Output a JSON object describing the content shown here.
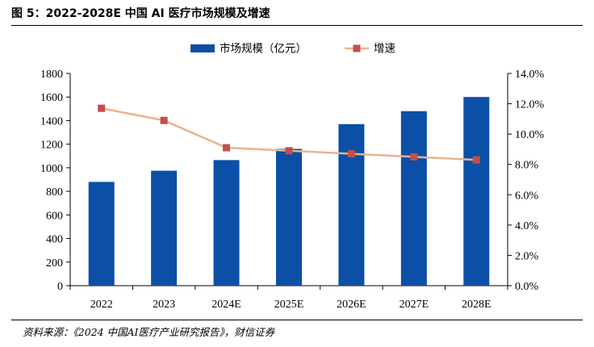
{
  "figure": {
    "title": "图 5：2022-2028E 中国 AI 医疗市场规模及增速",
    "source": "资料来源：《2024 中国AI医疗产业研究报告》，财信证券"
  },
  "chart_data": {
    "type": "bar",
    "categories": [
      "2022",
      "2023",
      "2024E",
      "2025E",
      "2026E",
      "2027E",
      "2028E"
    ],
    "series": [
      {
        "name": "市场规模（亿元）",
        "type": "bar",
        "axis": "left",
        "values": [
          880,
          975,
          1065,
          1160,
          1370,
          1480,
          1600
        ],
        "color": "#0B4FA6"
      },
      {
        "name": "增速",
        "type": "line",
        "axis": "right",
        "values": [
          11.7,
          10.9,
          9.1,
          8.9,
          8.7,
          8.5,
          8.3
        ],
        "color": "#E8B38F",
        "marker_color": "#C0504D"
      }
    ],
    "y_left": {
      "min": 0,
      "max": 1800,
      "step": 200,
      "ticks": [
        "0",
        "200",
        "400",
        "600",
        "800",
        "1000",
        "1200",
        "1400",
        "1600",
        "1800"
      ]
    },
    "y_right": {
      "min": 0,
      "max": 14,
      "step": 2,
      "ticks": [
        "0.0%",
        "2.0%",
        "4.0%",
        "6.0%",
        "8.0%",
        "10.0%",
        "12.0%",
        "14.0%"
      ]
    },
    "legend_position": "top",
    "grid": false
  }
}
